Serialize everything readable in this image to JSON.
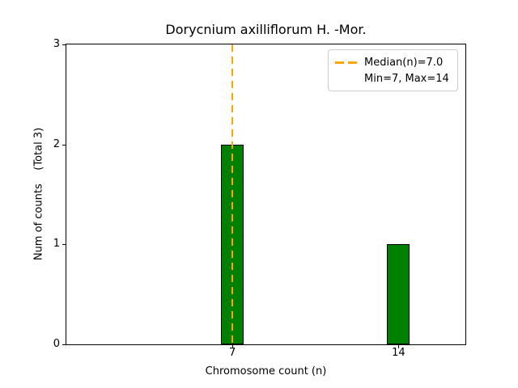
{
  "chart_data": {
    "type": "bar",
    "title": "Dorycnium axilliflorum H. -Mor.",
    "xlabel": "Chromosome count (n)",
    "ylabel": "Num of counts    (Total 3)",
    "categories": [
      7,
      14
    ],
    "values": [
      2,
      1
    ],
    "xticks": [
      7,
      14
    ],
    "yticks": [
      0,
      1,
      2,
      3
    ],
    "xlim": [
      0,
      16.82
    ],
    "ylim": [
      0,
      3
    ],
    "bar_width_units": 0.95,
    "bar_color": "#008000",
    "bar_edge_color": "#000000",
    "grid": false,
    "median_line": {
      "x": 7,
      "color": "#FFA500",
      "style": "dashed"
    },
    "legend": {
      "position": "upper right",
      "entries": [
        {
          "marker": "dashed-line",
          "marker_color": "#FFA500",
          "label": "Median(n)=7.0"
        },
        {
          "marker": "none",
          "label": "Min=7, Max=14"
        }
      ]
    }
  }
}
